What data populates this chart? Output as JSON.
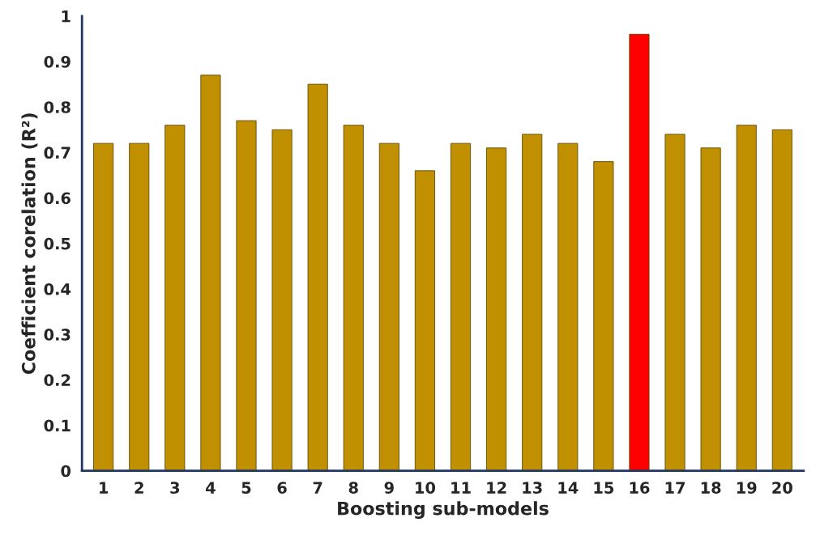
{
  "chart_data": {
    "type": "bar",
    "xlabel": "Boosting sub-models",
    "ylabel": "Coefficient corelation (R²)",
    "categories": [
      "1",
      "2",
      "3",
      "4",
      "5",
      "6",
      "7",
      "8",
      "9",
      "10",
      "11",
      "12",
      "13",
      "14",
      "15",
      "16",
      "17",
      "18",
      "19",
      "20"
    ],
    "values": [
      0.72,
      0.72,
      0.76,
      0.87,
      0.77,
      0.75,
      0.85,
      0.76,
      0.72,
      0.66,
      0.72,
      0.71,
      0.74,
      0.72,
      0.68,
      0.96,
      0.74,
      0.71,
      0.76,
      0.75
    ],
    "colors": [
      "#c09000",
      "#c09000",
      "#c09000",
      "#c09000",
      "#c09000",
      "#c09000",
      "#c09000",
      "#c09000",
      "#c09000",
      "#c09000",
      "#c09000",
      "#c09000",
      "#c09000",
      "#c09000",
      "#c09000",
      "#ff0000",
      "#c09000",
      "#c09000",
      "#c09000",
      "#c09000"
    ],
    "ylim": [
      0,
      1
    ],
    "yticks": [
      0,
      0.1,
      0.2,
      0.3,
      0.4,
      0.5,
      0.6,
      0.7,
      0.8,
      0.9,
      1
    ],
    "grid": false
  }
}
